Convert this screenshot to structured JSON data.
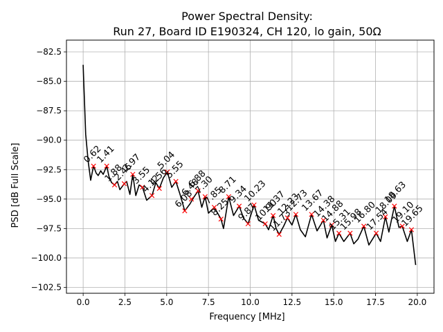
{
  "chart_data": {
    "type": "line",
    "title_lines": [
      "Power Spectral Density:",
      "Run 27, Board ID E190324, CH 120, lo gain, 50Ω"
    ],
    "xlabel": "Frequency [MHz]",
    "ylabel": "PSD [dB Full Scale]",
    "xlim": [
      -1.0,
      21.0
    ],
    "ylim": [
      -103.0,
      -81.5
    ],
    "xticks": [
      0.0,
      2.5,
      5.0,
      7.5,
      10.0,
      12.5,
      15.0,
      17.5,
      20.0
    ],
    "xtick_labels": [
      "0.0",
      "2.5",
      "5.0",
      "7.5",
      "10.0",
      "12.5",
      "15.0",
      "17.5",
      "20.0"
    ],
    "yticks": [
      -102.5,
      -100.0,
      -97.5,
      -95.0,
      -92.5,
      -90.0,
      -87.5,
      -85.0,
      -82.5
    ],
    "ytick_labels": [
      "−102.5",
      "−100.0",
      "−97.5",
      "−95.0",
      "−92.5",
      "−90.0",
      "−87.5",
      "−85.0",
      "−82.5"
    ],
    "grid": true,
    "line_color": "#000000",
    "marker_color": "#ff0000",
    "series": [
      {
        "x": [
          0.0,
          0.15,
          0.3,
          0.45,
          0.62,
          0.78,
          0.9,
          1.05,
          1.2,
          1.41,
          1.55,
          1.7,
          1.88,
          2.05,
          2.2,
          2.46,
          2.6,
          2.8,
          2.97,
          3.15,
          3.35,
          3.55,
          3.8,
          4.12,
          4.35,
          4.56,
          4.8,
          5.04,
          5.3,
          5.55,
          5.8,
          6.08,
          6.4,
          6.6,
          6.88,
          7.1,
          7.3,
          7.5,
          7.85,
          8.25,
          8.4,
          8.71,
          9.0,
          9.34,
          9.6,
          9.87,
          10.05,
          10.23,
          10.5,
          10.9,
          11.1,
          11.37,
          11.55,
          11.73,
          12.0,
          12.23,
          12.5,
          12.73,
          13.0,
          13.3,
          13.67,
          14.0,
          14.38,
          14.6,
          14.88,
          15.1,
          15.31,
          15.6,
          15.98,
          16.2,
          16.45,
          16.8,
          17.1,
          17.54,
          17.8,
          18.09,
          18.3,
          18.63,
          18.9,
          19.1,
          19.4,
          19.65,
          19.9
        ],
        "y": [
          -83.6,
          -89.5,
          -91.8,
          -93.4,
          -92.2,
          -92.8,
          -93.0,
          -92.6,
          -92.9,
          -92.2,
          -93.1,
          -93.6,
          -93.8,
          -93.5,
          -94.2,
          -93.7,
          -93.5,
          -94.6,
          -92.9,
          -94.7,
          -93.8,
          -94.0,
          -95.1,
          -94.7,
          -93.6,
          -94.1,
          -93.2,
          -92.7,
          -94.0,
          -93.5,
          -94.6,
          -96.0,
          -95.4,
          -94.9,
          -94.3,
          -95.7,
          -94.8,
          -96.2,
          -95.7,
          -96.7,
          -97.5,
          -94.8,
          -96.4,
          -95.6,
          -96.6,
          -97.1,
          -96.3,
          -95.5,
          -96.8,
          -97.1,
          -97.6,
          -96.4,
          -97.5,
          -98.0,
          -97.3,
          -96.6,
          -97.2,
          -96.3,
          -97.6,
          -98.2,
          -96.3,
          -97.7,
          -96.8,
          -98.3,
          -97.2,
          -98.6,
          -97.9,
          -98.6,
          -97.9,
          -98.8,
          -98.4,
          -97.3,
          -98.9,
          -97.9,
          -98.6,
          -96.5,
          -97.8,
          -95.6,
          -97.4,
          -97.3,
          -98.6,
          -97.6,
          -100.6
        ]
      }
    ],
    "peaks": [
      {
        "x": 0.62,
        "y": -92.2,
        "label": "0.62"
      },
      {
        "x": 1.41,
        "y": -92.2,
        "label": "1.41"
      },
      {
        "x": 1.88,
        "y": -93.8,
        "label": "1.88"
      },
      {
        "x": 2.46,
        "y": -93.7,
        "label": "2.46"
      },
      {
        "x": 2.97,
        "y": -92.9,
        "label": "2.97"
      },
      {
        "x": 3.55,
        "y": -94.0,
        "label": "3.55"
      },
      {
        "x": 4.12,
        "y": -94.7,
        "label": "4.12"
      },
      {
        "x": 4.56,
        "y": -94.1,
        "label": "4.56"
      },
      {
        "x": 5.04,
        "y": -92.7,
        "label": "5.04"
      },
      {
        "x": 5.55,
        "y": -93.5,
        "label": "5.55"
      },
      {
        "x": 6.08,
        "y": -96.0,
        "label": "6.08"
      },
      {
        "x": 6.48,
        "y": -95.0,
        "label": "6.48"
      },
      {
        "x": 6.88,
        "y": -94.3,
        "label": "6.88"
      },
      {
        "x": 7.3,
        "y": -94.8,
        "label": "7.30"
      },
      {
        "x": 7.85,
        "y": -95.7,
        "label": "7.85"
      },
      {
        "x": 8.25,
        "y": -96.7,
        "label": "8.25"
      },
      {
        "x": 8.71,
        "y": -94.8,
        "label": "8.71"
      },
      {
        "x": 9.34,
        "y": -95.6,
        "label": "9.34"
      },
      {
        "x": 9.87,
        "y": -97.1,
        "label": "9.87"
      },
      {
        "x": 10.23,
        "y": -95.5,
        "label": "10.23"
      },
      {
        "x": 10.9,
        "y": -97.1,
        "label": "10.90"
      },
      {
        "x": 11.37,
        "y": -96.4,
        "label": "11.37"
      },
      {
        "x": 11.73,
        "y": -98.0,
        "label": "11.73"
      },
      {
        "x": 12.23,
        "y": -96.6,
        "label": "12.23"
      },
      {
        "x": 12.73,
        "y": -96.3,
        "label": "12.73"
      },
      {
        "x": 13.67,
        "y": -96.3,
        "label": "13.67"
      },
      {
        "x": 14.38,
        "y": -96.8,
        "label": "14.38"
      },
      {
        "x": 14.88,
        "y": -97.2,
        "label": "14.88"
      },
      {
        "x": 15.31,
        "y": -97.9,
        "label": "15.31"
      },
      {
        "x": 15.98,
        "y": -97.9,
        "label": "15.98"
      },
      {
        "x": 16.8,
        "y": -97.3,
        "label": "16.80"
      },
      {
        "x": 17.54,
        "y": -97.9,
        "label": "17.54"
      },
      {
        "x": 18.09,
        "y": -96.5,
        "label": "18.09"
      },
      {
        "x": 18.63,
        "y": -95.6,
        "label": "18.63"
      },
      {
        "x": 19.1,
        "y": -97.3,
        "label": "19.10"
      },
      {
        "x": 19.65,
        "y": -97.6,
        "label": "19.65"
      }
    ]
  }
}
